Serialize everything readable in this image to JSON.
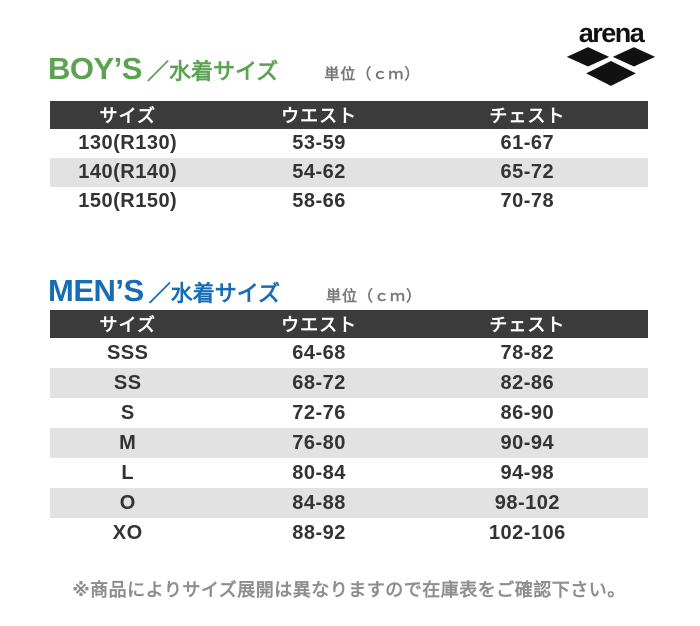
{
  "logo": {
    "brand": "arena"
  },
  "boys": {
    "title": "BOY’S",
    "subtitle": "／水着サイズ",
    "unit": "単位（ｃｍ）",
    "columns": [
      "サイズ",
      "ウエスト",
      "チェスト"
    ],
    "rows": [
      [
        "130(R130)",
        "53-59",
        "61-67"
      ],
      [
        "140(R140)",
        "54-62",
        "65-72"
      ],
      [
        "150(R150)",
        "58-66",
        "70-78"
      ]
    ]
  },
  "mens": {
    "title": "MEN’S",
    "subtitle": "／水着サイズ",
    "unit": "単位（ｃｍ）",
    "columns": [
      "サイズ",
      "ウエスト",
      "チェスト"
    ],
    "rows": [
      [
        "SSS",
        "64-68",
        "78-82"
      ],
      [
        "SS",
        "68-72",
        "82-86"
      ],
      [
        "S",
        "72-76",
        "86-90"
      ],
      [
        "M",
        "76-80",
        "90-94"
      ],
      [
        "L",
        "80-84",
        "94-98"
      ],
      [
        "O",
        "84-88",
        "98-102"
      ],
      [
        "XO",
        "88-92",
        "102-106"
      ]
    ]
  },
  "footnote": "※商品によりサイズ展開は異なりますので在庫表をご確認下さい。",
  "colors": {
    "boys_accent": "#5ba351",
    "mens_accent": "#166cb5",
    "table_header_bg": "#3b3b3b",
    "table_header_text": "#ffffff",
    "row_stripe": "#e2e2e2",
    "cell_text": "#333333",
    "unit_text": "#777777",
    "footnote_text": "#8e8e8e",
    "logo_black": "#111111"
  }
}
